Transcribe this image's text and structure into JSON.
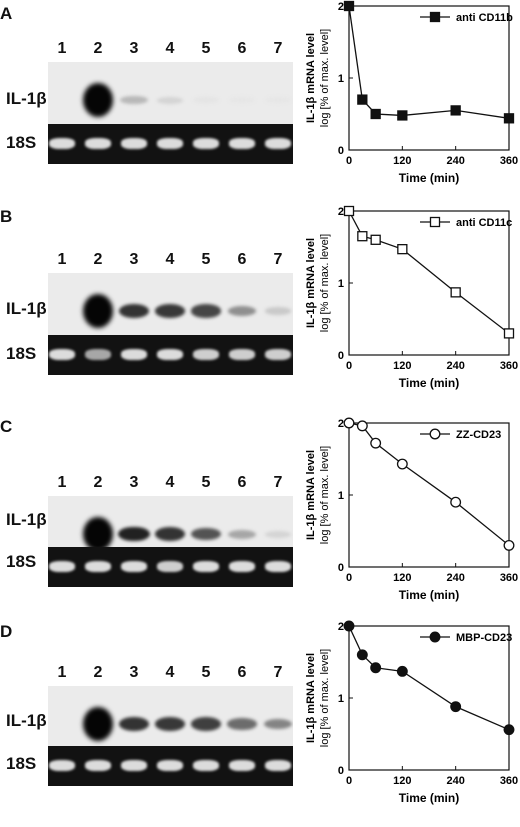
{
  "lanes": [
    "1",
    "2",
    "3",
    "4",
    "5",
    "6",
    "7"
  ],
  "row_labels": {
    "il": "IL-1β",
    "rrna": "18S"
  },
  "axis": {
    "xlabel": "Time (min)",
    "ylabel_top": "IL-1β mRNA level",
    "ylabel_bottom": "log [% of max. level]"
  },
  "panels": [
    {
      "letter": "A",
      "il_intensity": [
        0,
        1.0,
        0.22,
        0.1,
        0.03,
        0.02,
        0.02
      ],
      "rrna_intensity": [
        1,
        1,
        1,
        1,
        1,
        1,
        1
      ]
    },
    {
      "letter": "B",
      "il_intensity": [
        0,
        1.0,
        0.8,
        0.78,
        0.72,
        0.4,
        0.15
      ],
      "rrna_intensity": [
        1,
        0.6,
        1,
        1,
        0.9,
        0.9,
        0.9
      ]
    },
    {
      "letter": "C",
      "il_intensity": [
        0,
        1.0,
        0.88,
        0.8,
        0.66,
        0.3,
        0.1
      ],
      "rrna_intensity": [
        1,
        1,
        1,
        0.9,
        1,
        1,
        1
      ]
    },
    {
      "letter": "D",
      "il_intensity": [
        0,
        1.0,
        0.8,
        0.78,
        0.75,
        0.55,
        0.45
      ],
      "rrna_intensity": [
        1,
        1,
        1,
        1,
        1,
        1,
        1
      ]
    }
  ],
  "chart_data": [
    {
      "type": "line",
      "x": [
        0,
        30,
        60,
        120,
        240,
        360
      ],
      "y": [
        2.0,
        0.7,
        0.5,
        0.48,
        0.55,
        0.44
      ],
      "series": [
        {
          "name": "anti CD11b",
          "marker": "filled-square"
        }
      ],
      "xlabel": "Time (min)",
      "ylabel": "IL-1β mRNA level log [% of max. level]",
      "xlim": [
        0,
        360
      ],
      "ylim": [
        0,
        2
      ],
      "xticks": [
        "0",
        "120",
        "240",
        "360"
      ],
      "yticks": [
        "0",
        "1",
        "2"
      ],
      "legend": "top-right"
    },
    {
      "type": "line",
      "x": [
        0,
        30,
        60,
        120,
        240,
        360
      ],
      "y": [
        2.0,
        1.65,
        1.6,
        1.47,
        0.87,
        0.3
      ],
      "series": [
        {
          "name": "anti CD11c",
          "marker": "open-square"
        }
      ],
      "xlabel": "Time (min)",
      "ylabel": "IL-1β mRNA level log [% of max. level]",
      "xlim": [
        0,
        360
      ],
      "ylim": [
        0,
        2
      ],
      "xticks": [
        "0",
        "120",
        "240",
        "360"
      ],
      "yticks": [
        "0",
        "1",
        "2"
      ],
      "legend": "top-right"
    },
    {
      "type": "line",
      "x": [
        0,
        30,
        60,
        120,
        240,
        360
      ],
      "y": [
        2.0,
        1.96,
        1.72,
        1.43,
        0.9,
        0.3
      ],
      "series": [
        {
          "name": "ZZ-CD23",
          "marker": "open-circle"
        }
      ],
      "xlabel": "Time (min)",
      "ylabel": "IL-1β mRNA level log [% of max. level]",
      "xlim": [
        0,
        360
      ],
      "ylim": [
        0,
        2
      ],
      "xticks": [
        "0",
        "120",
        "240",
        "360"
      ],
      "yticks": [
        "0",
        "1",
        "2"
      ],
      "legend": "top-right"
    },
    {
      "type": "line",
      "x": [
        0,
        30,
        60,
        120,
        240,
        360
      ],
      "y": [
        2.0,
        1.6,
        1.42,
        1.37,
        0.88,
        0.56
      ],
      "series": [
        {
          "name": "MBP-CD23",
          "marker": "filled-circle"
        }
      ],
      "xlabel": "Time (min)",
      "ylabel": "IL-1β mRNA level log [% of max. level]",
      "xlim": [
        0,
        360
      ],
      "ylim": [
        0,
        2
      ],
      "xticks": [
        "0",
        "120",
        "240",
        "360"
      ],
      "yticks": [
        "0",
        "1",
        "2"
      ],
      "legend": "top-right"
    }
  ]
}
